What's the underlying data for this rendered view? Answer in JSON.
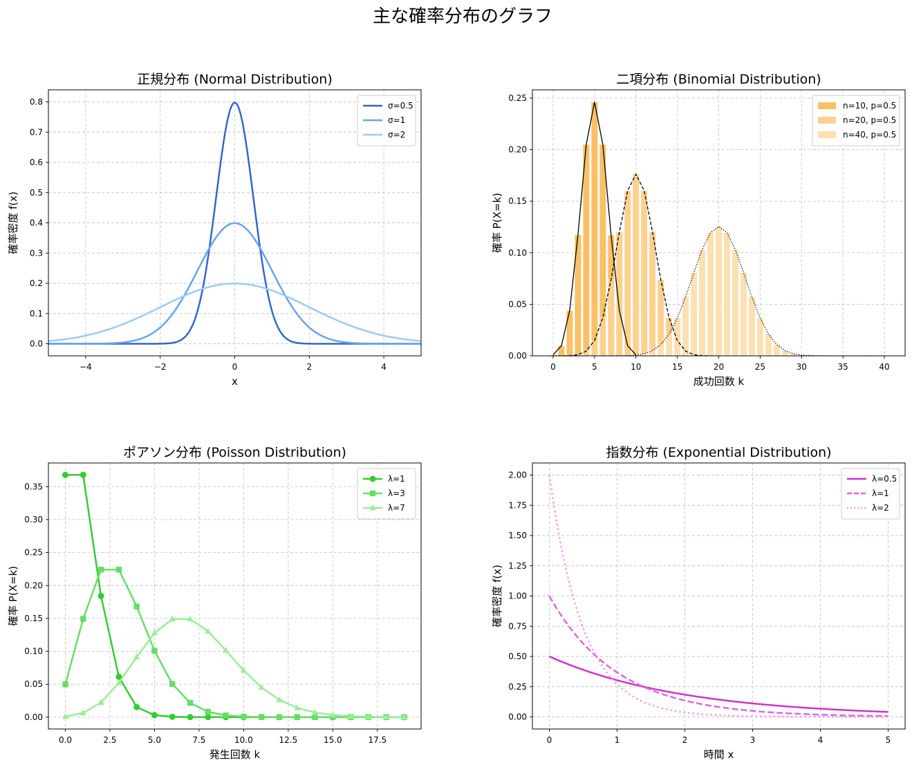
{
  "suptitle": "主な確率分布のグラフ",
  "chart_data": [
    {
      "id": "normal",
      "type": "line",
      "title": "正規分布 (Normal Distribution)",
      "xlabel": "x",
      "ylabel": "確率密度 f(x)",
      "xlim": [
        -5,
        5
      ],
      "ylim": [
        -0.04,
        0.84
      ],
      "xticks": [
        -4,
        -2,
        0,
        2,
        4
      ],
      "xtick_labels": [
        "−4",
        "−2",
        "0",
        "2",
        "4"
      ],
      "yticks": [
        0.0,
        0.1,
        0.2,
        0.3,
        0.4,
        0.5,
        0.6,
        0.7,
        0.8
      ],
      "ytick_labels": [
        "0.0",
        "0.1",
        "0.2",
        "0.3",
        "0.4",
        "0.5",
        "0.6",
        "0.7",
        "0.8"
      ],
      "grid": true,
      "legend": "top-right",
      "series": [
        {
          "name": "σ=0.5",
          "sigma": 0.5,
          "color": "#3366cc"
        },
        {
          "name": "σ=1",
          "sigma": 1,
          "color": "#66a3f0"
        },
        {
          "name": "σ=2",
          "sigma": 2,
          "color": "#99ccf5"
        }
      ]
    },
    {
      "id": "binomial",
      "type": "bar",
      "title": "二項分布 (Binomial Distribution)",
      "xlabel": "成功回数 k",
      "ylabel": "確率 P(X=k)",
      "xlim": [
        -2.5,
        42.5
      ],
      "ylim": [
        0,
        0.258
      ],
      "xticks": [
        0,
        5,
        10,
        15,
        20,
        25,
        30,
        35,
        40
      ],
      "xtick_labels": [
        "0",
        "5",
        "10",
        "15",
        "20",
        "25",
        "30",
        "35",
        "40"
      ],
      "yticks": [
        0.0,
        0.05,
        0.1,
        0.15,
        0.2,
        0.25
      ],
      "ytick_labels": [
        "0.00",
        "0.05",
        "0.10",
        "0.15",
        "0.20",
        "0.25"
      ],
      "grid": true,
      "legend": "top-right",
      "series": [
        {
          "name": "n=10, p=0.5",
          "n": 10,
          "p": 0.5,
          "color": "#fbc066",
          "line": "solid"
        },
        {
          "name": "n=20, p=0.5",
          "n": 20,
          "p": 0.5,
          "color": "#fcd18e",
          "line": "dashed"
        },
        {
          "name": "n=40, p=0.5",
          "n": 40,
          "p": 0.5,
          "color": "#fde0b2",
          "line": "dotted"
        }
      ]
    },
    {
      "id": "poisson",
      "type": "line",
      "title": "ポアソン分布 (Poisson Distribution)",
      "xlabel": "発生回数 k",
      "ylabel": "確率 P(X=k)",
      "xlim": [
        -0.95,
        19.95
      ],
      "ylim": [
        -0.018,
        0.386
      ],
      "xticks": [
        0,
        2.5,
        5,
        7.5,
        10,
        12.5,
        15,
        17.5
      ],
      "xtick_labels": [
        "0.0",
        "2.5",
        "5.0",
        "7.5",
        "10.0",
        "12.5",
        "15.0",
        "17.5"
      ],
      "yticks": [
        0.0,
        0.05,
        0.1,
        0.15,
        0.2,
        0.25,
        0.3,
        0.35
      ],
      "ytick_labels": [
        "0.00",
        "0.05",
        "0.10",
        "0.15",
        "0.20",
        "0.25",
        "0.30",
        "0.35"
      ],
      "grid": true,
      "legend": "top-right",
      "k_max": 19,
      "series": [
        {
          "name": "λ=1",
          "lambda": 1,
          "color": "#33cc33",
          "marker": "circle"
        },
        {
          "name": "λ=3",
          "lambda": 3,
          "color": "#66dd66",
          "marker": "square"
        },
        {
          "name": "λ=7",
          "lambda": 7,
          "color": "#99ee99",
          "marker": "triangle"
        }
      ]
    },
    {
      "id": "exponential",
      "type": "line",
      "title": "指数分布 (Exponential Distribution)",
      "xlabel": "時間 x",
      "ylabel": "確率密度 f(x)",
      "xlim": [
        -0.25,
        5.25
      ],
      "ylim": [
        -0.1,
        2.1
      ],
      "xticks": [
        0,
        1,
        2,
        3,
        4,
        5
      ],
      "xtick_labels": [
        "0",
        "1",
        "2",
        "3",
        "4",
        "5"
      ],
      "yticks": [
        0.0,
        0.25,
        0.5,
        0.75,
        1.0,
        1.25,
        1.5,
        1.75,
        2.0
      ],
      "ytick_labels": [
        "0.00",
        "0.25",
        "0.50",
        "0.75",
        "1.00",
        "1.25",
        "1.50",
        "1.75",
        "2.00"
      ],
      "grid": true,
      "legend": "top-right",
      "series": [
        {
          "name": "λ=0.5",
          "lambda": 0.5,
          "color": "#cc33cc",
          "line": "solid"
        },
        {
          "name": "λ=1",
          "lambda": 1,
          "color": "#dd66dd",
          "line": "dashed"
        },
        {
          "name": "λ=2",
          "lambda": 2,
          "color": "#ee99ee",
          "line": "dotted"
        }
      ]
    }
  ]
}
